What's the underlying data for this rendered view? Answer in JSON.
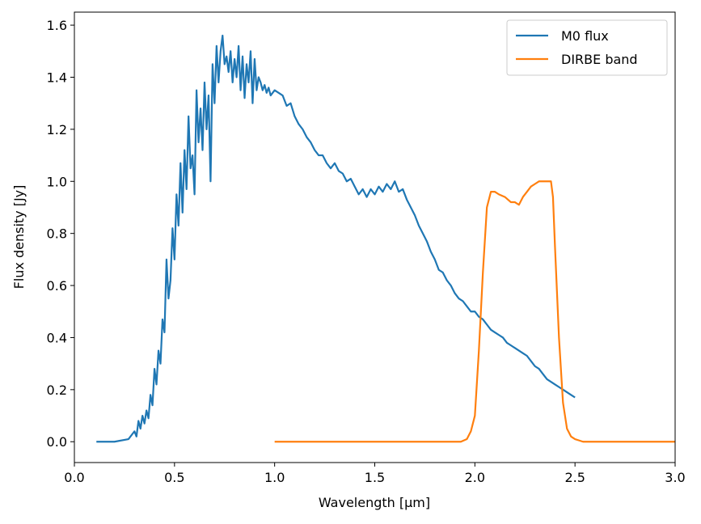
{
  "chart_data": {
    "type": "line",
    "xlabel": "Wavelength [µm]",
    "ylabel": "Flux density [Jy]",
    "xlim": [
      0.0,
      3.0
    ],
    "ylim": [
      -0.08,
      1.65
    ],
    "x_ticks": [
      "0.0",
      "0.5",
      "1.0",
      "1.5",
      "2.0",
      "2.5",
      "3.0"
    ],
    "y_ticks": [
      "0.0",
      "0.2",
      "0.4",
      "0.6",
      "0.8",
      "1.0",
      "1.2",
      "1.4",
      "1.6"
    ],
    "grid": false,
    "legend_position": "top-right",
    "series": [
      {
        "name": "M0 flux",
        "color": "#1f77b4",
        "x": [
          0.11,
          0.2,
          0.27,
          0.3,
          0.31,
          0.32,
          0.33,
          0.34,
          0.35,
          0.36,
          0.37,
          0.38,
          0.39,
          0.4,
          0.41,
          0.42,
          0.43,
          0.44,
          0.45,
          0.46,
          0.47,
          0.48,
          0.49,
          0.5,
          0.51,
          0.52,
          0.53,
          0.54,
          0.55,
          0.56,
          0.57,
          0.58,
          0.59,
          0.6,
          0.61,
          0.62,
          0.63,
          0.64,
          0.65,
          0.66,
          0.67,
          0.68,
          0.69,
          0.7,
          0.71,
          0.72,
          0.73,
          0.74,
          0.75,
          0.76,
          0.77,
          0.78,
          0.79,
          0.8,
          0.81,
          0.82,
          0.83,
          0.84,
          0.85,
          0.86,
          0.87,
          0.88,
          0.89,
          0.9,
          0.91,
          0.92,
          0.93,
          0.94,
          0.95,
          0.96,
          0.97,
          0.98,
          1.0,
          1.02,
          1.04,
          1.06,
          1.08,
          1.1,
          1.12,
          1.14,
          1.16,
          1.18,
          1.2,
          1.22,
          1.24,
          1.26,
          1.28,
          1.3,
          1.32,
          1.34,
          1.36,
          1.38,
          1.4,
          1.42,
          1.44,
          1.46,
          1.48,
          1.5,
          1.52,
          1.54,
          1.56,
          1.58,
          1.6,
          1.62,
          1.64,
          1.66,
          1.68,
          1.7,
          1.72,
          1.74,
          1.76,
          1.78,
          1.8,
          1.82,
          1.84,
          1.86,
          1.88,
          1.9,
          1.92,
          1.94,
          1.96,
          1.98,
          2.0,
          2.02,
          2.04,
          2.06,
          2.08,
          2.1,
          2.12,
          2.14,
          2.16,
          2.18,
          2.2,
          2.22,
          2.24,
          2.26,
          2.28,
          2.3,
          2.32,
          2.34,
          2.36,
          2.38,
          2.4,
          2.42,
          2.44,
          2.46,
          2.48,
          2.5
        ],
        "values": [
          0.0,
          0.0,
          0.01,
          0.04,
          0.02,
          0.08,
          0.05,
          0.1,
          0.07,
          0.12,
          0.09,
          0.18,
          0.14,
          0.28,
          0.22,
          0.35,
          0.3,
          0.47,
          0.42,
          0.7,
          0.55,
          0.62,
          0.82,
          0.7,
          0.95,
          0.83,
          1.07,
          0.88,
          1.12,
          0.97,
          1.25,
          1.05,
          1.1,
          0.95,
          1.35,
          1.15,
          1.28,
          1.12,
          1.38,
          1.2,
          1.33,
          1.0,
          1.45,
          1.3,
          1.52,
          1.38,
          1.5,
          1.56,
          1.45,
          1.48,
          1.42,
          1.5,
          1.38,
          1.47,
          1.4,
          1.52,
          1.35,
          1.48,
          1.32,
          1.45,
          1.38,
          1.5,
          1.3,
          1.47,
          1.35,
          1.4,
          1.38,
          1.35,
          1.37,
          1.34,
          1.36,
          1.33,
          1.35,
          1.34,
          1.33,
          1.29,
          1.3,
          1.25,
          1.22,
          1.2,
          1.17,
          1.15,
          1.12,
          1.1,
          1.1,
          1.07,
          1.05,
          1.07,
          1.04,
          1.03,
          1.0,
          1.01,
          0.98,
          0.95,
          0.97,
          0.94,
          0.97,
          0.95,
          0.98,
          0.96,
          0.99,
          0.97,
          1.0,
          0.96,
          0.97,
          0.93,
          0.9,
          0.87,
          0.83,
          0.8,
          0.77,
          0.73,
          0.7,
          0.66,
          0.65,
          0.62,
          0.6,
          0.57,
          0.55,
          0.54,
          0.52,
          0.5,
          0.5,
          0.48,
          0.47,
          0.45,
          0.43,
          0.42,
          0.41,
          0.4,
          0.38,
          0.37,
          0.36,
          0.35,
          0.34,
          0.33,
          0.31,
          0.29,
          0.28,
          0.26,
          0.24,
          0.23,
          0.22,
          0.21,
          0.2,
          0.19,
          0.18,
          0.17
        ]
      },
      {
        "name": "DIRBE band",
        "color": "#ff7f0e",
        "x": [
          1.0,
          1.5,
          1.9,
          1.93,
          1.96,
          1.98,
          2.0,
          2.02,
          2.04,
          2.06,
          2.08,
          2.1,
          2.12,
          2.15,
          2.18,
          2.2,
          2.22,
          2.24,
          2.26,
          2.28,
          2.3,
          2.32,
          2.34,
          2.36,
          2.38,
          2.39,
          2.4,
          2.42,
          2.44,
          2.46,
          2.48,
          2.5,
          2.52,
          2.54,
          2.6,
          2.8,
          3.0
        ],
        "values": [
          0.0,
          0.0,
          0.0,
          0.0,
          0.01,
          0.04,
          0.1,
          0.35,
          0.65,
          0.9,
          0.96,
          0.96,
          0.95,
          0.94,
          0.92,
          0.92,
          0.91,
          0.94,
          0.96,
          0.98,
          0.99,
          1.0,
          1.0,
          1.0,
          1.0,
          0.94,
          0.75,
          0.4,
          0.15,
          0.05,
          0.02,
          0.01,
          0.005,
          0.0,
          0.0,
          0.0,
          0.0
        ]
      }
    ]
  }
}
